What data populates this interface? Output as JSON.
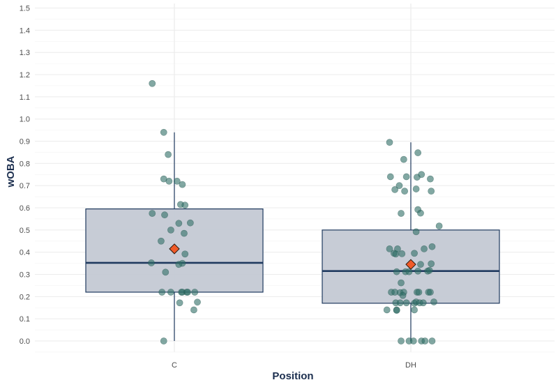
{
  "chart_data": {
    "type": "boxplot",
    "title": "",
    "xlabel": "Position",
    "ylabel": "wOBA",
    "ylim": [
      -0.05,
      1.52
    ],
    "yticks": [
      "0.0",
      "0.1",
      "0.2",
      "0.3",
      "0.4",
      "0.5",
      "0.6",
      "0.7",
      "0.8",
      "0.9",
      "1.0",
      "1.1",
      "1.2",
      "1.3",
      "1.4",
      "1.5"
    ],
    "categories": [
      "C",
      "DH"
    ],
    "colors": {
      "box_fill": "#c4c9d4",
      "box_stroke": "#1f3a5f",
      "point": "#2e6e66",
      "mean_marker": "#f05a28",
      "grid": "#ebebeb",
      "axis_title": "#1c2f4f"
    },
    "boxes": [
      {
        "category": "C",
        "whisker_low": 0.0,
        "q1": 0.22,
        "median": 0.352,
        "q3": 0.595,
        "whisker_high": 0.94,
        "mean": 0.415
      },
      {
        "category": "DH",
        "whisker_low": 0.0,
        "q1": 0.17,
        "median": 0.315,
        "q3": 0.5,
        "whisker_high": 0.895,
        "mean": 0.345
      }
    ],
    "points": {
      "C": [
        [
          -0.25,
          1.16
        ],
        [
          -0.12,
          0.94
        ],
        [
          -0.07,
          0.84
        ],
        [
          -0.12,
          0.73
        ],
        [
          -0.06,
          0.72
        ],
        [
          0.03,
          0.72
        ],
        [
          0.09,
          0.705
        ],
        [
          0.07,
          0.615
        ],
        [
          0.12,
          0.612
        ],
        [
          -0.25,
          0.575
        ],
        [
          -0.11,
          0.568
        ],
        [
          -0.04,
          0.5
        ],
        [
          0.05,
          0.53
        ],
        [
          0.18,
          0.532
        ],
        [
          0.11,
          0.485
        ],
        [
          -0.15,
          0.45
        ],
        [
          0.12,
          0.392
        ],
        [
          -0.26,
          0.352
        ],
        [
          0.05,
          0.345
        ],
        [
          0.09,
          0.35
        ],
        [
          -0.1,
          0.31
        ],
        [
          -0.14,
          0.22
        ],
        [
          -0.04,
          0.22
        ],
        [
          0.08,
          0.22
        ],
        [
          0.09,
          0.22
        ],
        [
          0.14,
          0.22
        ],
        [
          0.15,
          0.22
        ],
        [
          0.23,
          0.22
        ],
        [
          0.06,
          0.172
        ],
        [
          0.26,
          0.175
        ],
        [
          0.22,
          0.14
        ],
        [
          -0.12,
          0.0
        ]
      ],
      "DH": [
        [
          -0.24,
          0.895
        ],
        [
          0.08,
          0.848
        ],
        [
          -0.08,
          0.818
        ],
        [
          -0.23,
          0.74
        ],
        [
          -0.05,
          0.74
        ],
        [
          0.07,
          0.738
        ],
        [
          0.12,
          0.75
        ],
        [
          0.22,
          0.73
        ],
        [
          -0.18,
          0.682
        ],
        [
          -0.13,
          0.7
        ],
        [
          -0.07,
          0.675
        ],
        [
          0.06,
          0.685
        ],
        [
          0.23,
          0.675
        ],
        [
          0.08,
          0.592
        ],
        [
          -0.11,
          0.575
        ],
        [
          0.11,
          0.576
        ],
        [
          0.32,
          0.518
        ],
        [
          0.06,
          0.492
        ],
        [
          -0.24,
          0.415
        ],
        [
          -0.15,
          0.415
        ],
        [
          -0.19,
          0.395
        ],
        [
          -0.17,
          0.392
        ],
        [
          -0.1,
          0.393
        ],
        [
          0.04,
          0.395
        ],
        [
          0.15,
          0.415
        ],
        [
          0.24,
          0.425
        ],
        [
          0.11,
          0.345
        ],
        [
          0.23,
          0.348
        ],
        [
          -0.06,
          0.312
        ],
        [
          -0.16,
          0.312
        ],
        [
          -0.02,
          0.312
        ],
        [
          0.08,
          0.315
        ],
        [
          0.19,
          0.315
        ],
        [
          0.21,
          0.318
        ],
        [
          -0.11,
          0.262
        ],
        [
          -0.22,
          0.22
        ],
        [
          -0.18,
          0.22
        ],
        [
          -0.12,
          0.218
        ],
        [
          -0.08,
          0.22
        ],
        [
          0.07,
          0.22
        ],
        [
          0.09,
          0.22
        ],
        [
          0.2,
          0.22
        ],
        [
          0.22,
          0.22
        ],
        [
          -0.09,
          0.205
        ],
        [
          -0.17,
          0.172
        ],
        [
          -0.12,
          0.172
        ],
        [
          -0.05,
          0.172
        ],
        [
          0.04,
          0.17
        ],
        [
          0.06,
          0.176
        ],
        [
          0.1,
          0.172
        ],
        [
          0.14,
          0.172
        ],
        [
          0.26,
          0.176
        ],
        [
          -0.27,
          0.14
        ],
        [
          -0.16,
          0.14
        ],
        [
          -0.16,
          0.138
        ],
        [
          0.04,
          0.14
        ],
        [
          -0.11,
          0.0
        ],
        [
          -0.02,
          0.0
        ],
        [
          0.03,
          0.0
        ],
        [
          0.12,
          0.0
        ],
        [
          0.16,
          0.0
        ],
        [
          0.24,
          0.0
        ]
      ]
    }
  }
}
